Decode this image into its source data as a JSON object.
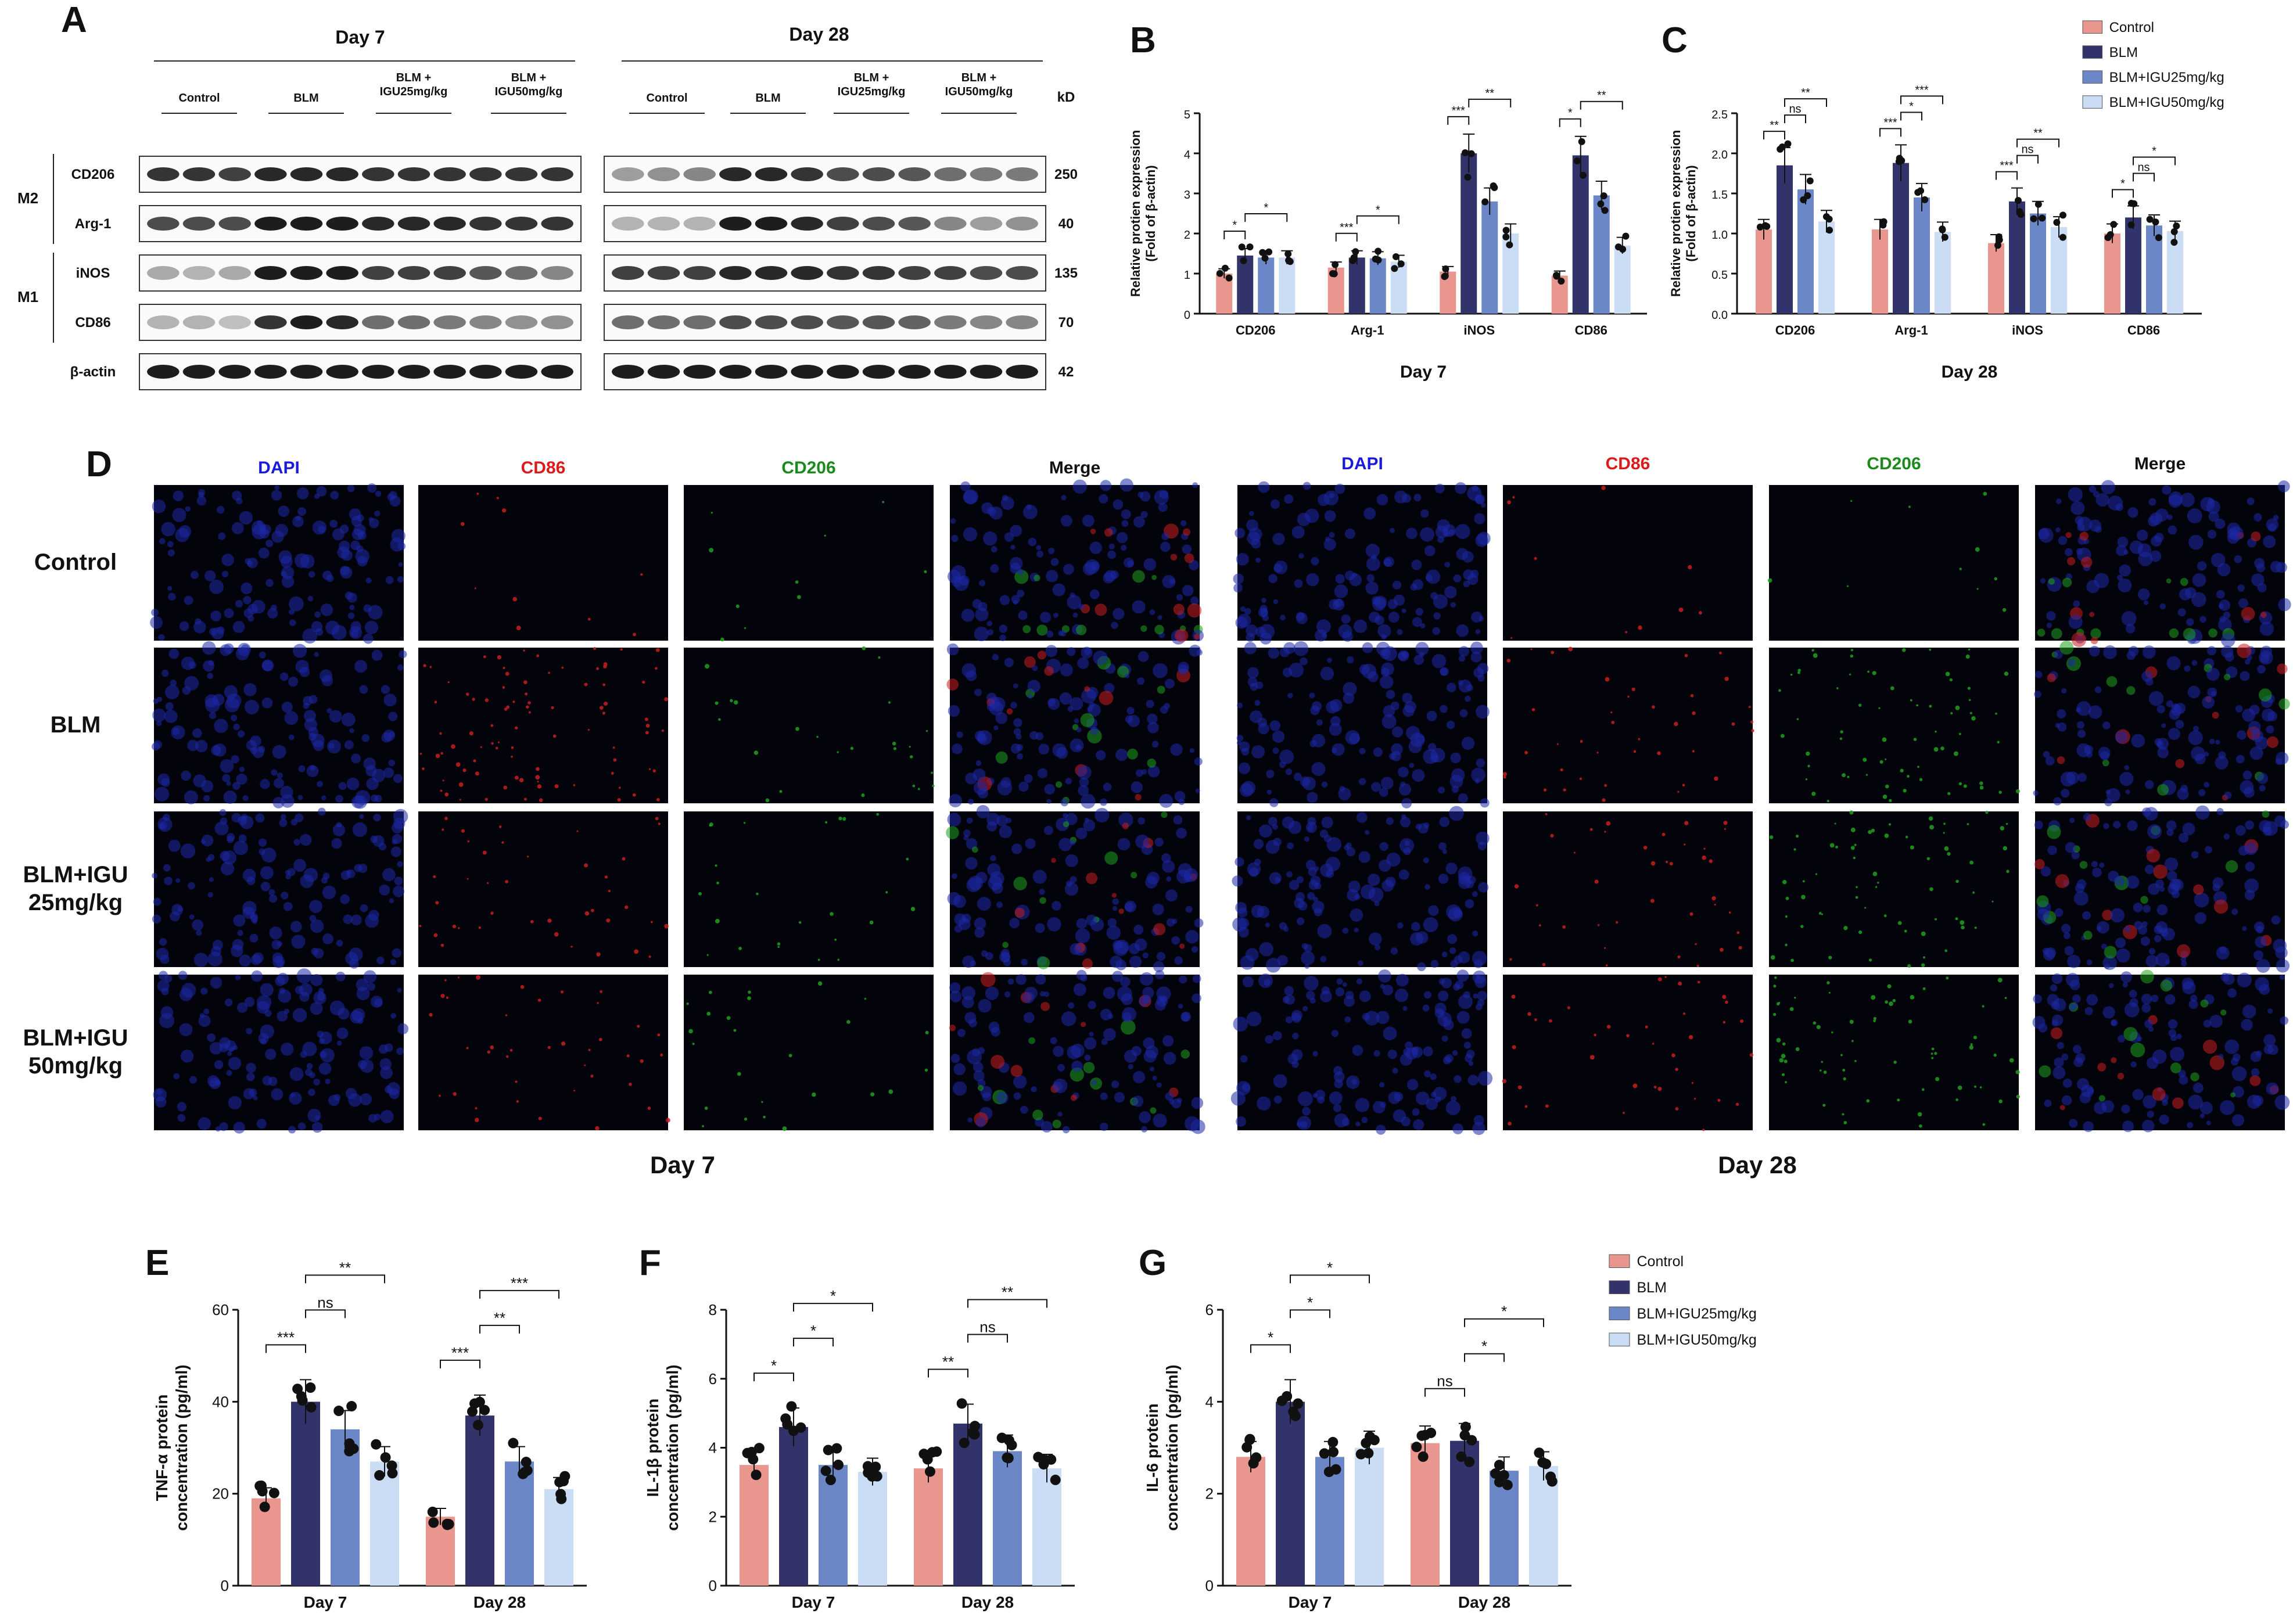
{
  "colors": {
    "control": "#E8968E",
    "blm": "#33336B",
    "igu25": "#6C87C7",
    "igu50": "#CBDCF5"
  },
  "panel_A": {
    "letter": "A",
    "day7": "Day 7",
    "day28": "Day 28",
    "kd": "kD",
    "groups": [
      "Control",
      "BLM",
      "BLM +\nIGU25mg/kg",
      "BLM +\nIGU50mg/kg"
    ],
    "bands": [
      "CD206",
      "Arg-1",
      "iNOS",
      "CD86",
      "β-actin"
    ],
    "kd_values": [
      "250",
      "40",
      "135",
      "70",
      "42"
    ],
    "group_labels": [
      "M2",
      "M1"
    ]
  },
  "legend": [
    "Control",
    "BLM",
    "BLM+IGU25mg/kg",
    "BLM+IGU50mg/kg"
  ],
  "chart_data": [
    {
      "id": "B",
      "type": "bar",
      "title": "Day 7",
      "ylabel": "Relative protien expression\n(Fold of β-actin)",
      "categories": [
        "CD206",
        "Arg-1",
        "iNOS",
        "CD86"
      ],
      "ylim": [
        0,
        5
      ],
      "yticks": [
        "0",
        "1",
        "2",
        "3",
        "4",
        "5"
      ],
      "series": [
        {
          "name": "Control",
          "values": [
            1.0,
            1.15,
            1.05,
            0.95
          ]
        },
        {
          "name": "BLM",
          "values": [
            1.45,
            1.4,
            4.0,
            3.95
          ]
        },
        {
          "name": "BLM+IGU25mg/kg",
          "values": [
            1.4,
            1.38,
            2.8,
            2.95
          ]
        },
        {
          "name": "BLM+IGU50mg/kg",
          "values": [
            1.4,
            1.3,
            2.0,
            1.7
          ]
        }
      ],
      "sig": [
        "*",
        "*",
        "***",
        "*",
        "***",
        "**",
        "*",
        "**"
      ]
    },
    {
      "id": "C",
      "type": "bar",
      "title": "Day 28",
      "ylabel": "Relative protien expression\n(Fold of β-actin)",
      "categories": [
        "CD206",
        "Arg-1",
        "iNOS",
        "CD86"
      ],
      "ylim": [
        0,
        2.5
      ],
      "yticks": [
        "0.0",
        "0.5",
        "1.0",
        "1.5",
        "2.0",
        "2.5"
      ],
      "series": [
        {
          "name": "Control",
          "values": [
            1.05,
            1.05,
            0.88,
            1.0
          ]
        },
        {
          "name": "BLM",
          "values": [
            1.85,
            1.88,
            1.4,
            1.2
          ]
        },
        {
          "name": "BLM+IGU25mg/kg",
          "values": [
            1.55,
            1.45,
            1.25,
            1.1
          ]
        },
        {
          "name": "BLM+IGU50mg/kg",
          "values": [
            1.15,
            1.02,
            1.08,
            1.03
          ]
        }
      ],
      "sig": [
        "**",
        "ns",
        "**",
        "***",
        "*",
        "***",
        "***",
        "ns",
        "**",
        "*",
        "ns",
        "*"
      ]
    },
    {
      "id": "E",
      "type": "bar",
      "ylabel": "TNF-α protein\nconcentration (pg/ml)",
      "categories": [
        "Day 7",
        "Day 28"
      ],
      "ylim": [
        0,
        60
      ],
      "yticks": [
        "0",
        "20",
        "40",
        "60"
      ],
      "series": [
        {
          "name": "Control",
          "values": [
            19,
            15
          ]
        },
        {
          "name": "BLM",
          "values": [
            40,
            37
          ]
        },
        {
          "name": "BLM+IGU25mg/kg",
          "values": [
            34,
            27
          ]
        },
        {
          "name": "BLM+IGU50mg/kg",
          "values": [
            27,
            21
          ]
        }
      ],
      "sig": [
        "***",
        "ns",
        "**",
        "***",
        "**",
        "***"
      ]
    },
    {
      "id": "F",
      "type": "bar",
      "ylabel": "IL-1β protein\nconcentration (pg/ml)",
      "categories": [
        "Day 7",
        "Day 28"
      ],
      "ylim": [
        0,
        8
      ],
      "yticks": [
        "0",
        "2",
        "4",
        "6",
        "8"
      ],
      "series": [
        {
          "name": "Control",
          "values": [
            3.5,
            3.4
          ]
        },
        {
          "name": "BLM",
          "values": [
            4.6,
            4.7
          ]
        },
        {
          "name": "BLM+IGU25mg/kg",
          "values": [
            3.5,
            3.9
          ]
        },
        {
          "name": "BLM+IGU50mg/kg",
          "values": [
            3.3,
            3.4
          ]
        }
      ],
      "sig": [
        "*",
        "*",
        "*",
        "**",
        "ns",
        "**"
      ]
    },
    {
      "id": "G",
      "type": "bar",
      "ylabel": "IL-6 protein\nconcentration (pg/ml)",
      "categories": [
        "Day 7",
        "Day 28"
      ],
      "ylim": [
        0,
        6
      ],
      "yticks": [
        "0",
        "2",
        "4",
        "6"
      ],
      "series": [
        {
          "name": "Control",
          "values": [
            2.8,
            3.1
          ]
        },
        {
          "name": "BLM",
          "values": [
            4.0,
            3.15
          ]
        },
        {
          "name": "BLM+IGU25mg/kg",
          "values": [
            2.8,
            2.5
          ]
        },
        {
          "name": "BLM+IGU50mg/kg",
          "values": [
            3.0,
            2.6
          ]
        }
      ],
      "sig": [
        "*",
        "*",
        "*",
        "ns",
        "*",
        "*"
      ]
    }
  ],
  "panel_D": {
    "letter": "D",
    "channels": [
      "DAPI",
      "CD86",
      "CD206",
      "Merge"
    ],
    "rows": [
      "Control",
      "BLM",
      "BLM+IGU\n25mg/kg",
      "BLM+IGU\n50mg/kg"
    ],
    "day7": "Day 7",
    "day28": "Day 28"
  }
}
